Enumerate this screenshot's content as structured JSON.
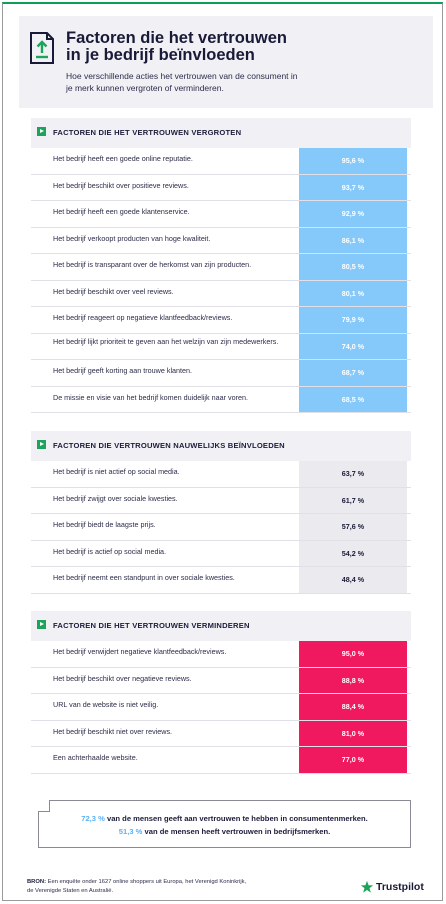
{
  "header": {
    "title_lines": [
      "Factoren die het vertrouwen",
      "in je bedrijf beïnvloeden"
    ],
    "subtitle_lines": [
      "Hoe verschillende acties het vertrouwen van de consument in",
      "je merk kunnen vergroten of verminderen."
    ]
  },
  "sections": {
    "increase": {
      "label": "FACTOREN DIE HET VERTROUWEN VERGROTEN",
      "color": "#85c8fa",
      "rows": [
        {
          "text": "Het bedrijf heeft een goede online reputatie.",
          "value": "95,6 %"
        },
        {
          "text": "Het bedrijf beschikt over positieve reviews.",
          "value": "93,7 %"
        },
        {
          "text": "Het bedrijf heeft een goede klantenservice.",
          "value": "92,9 %"
        },
        {
          "text": "Het bedrijf verkoopt producten van hoge kwaliteit.",
          "value": "86,1 %"
        },
        {
          "text": "Het bedrijf is transparant over de herkomst van zijn producten.",
          "value": "80,5 %"
        },
        {
          "text": "Het bedrijf beschikt over veel reviews.",
          "value": "80,1 %"
        },
        {
          "text": "Het bedrijf reageert op negatieve klantfeedback/reviews.",
          "value": "79,9 %"
        },
        {
          "text": "Het bedrijf lijkt prioriteit te geven aan het welzijn van zijn medewerkers.",
          "value": "74,0 %"
        },
        {
          "text": "Het bedrijf geeft korting aan trouwe klanten.",
          "value": "68,7 %"
        },
        {
          "text": "De missie en visie van het bedrijf komen duidelijk naar voren.",
          "value": "68,5 %"
        }
      ]
    },
    "neutral": {
      "label": "FACTOREN DIE VERTROUWEN NAUWELIJKS BEÏNVLOEDEN",
      "color": "#ebebef",
      "rows": [
        {
          "text": "Het bedrijf is niet actief op social media.",
          "value": "63,7 %"
        },
        {
          "text": "Het bedrijf zwijgt over sociale kwesties.",
          "value": "61,7 %"
        },
        {
          "text": "Het bedrijf biedt de laagste prijs.",
          "value": "57,6 %"
        },
        {
          "text": "Het bedrijf is actief op social media.",
          "value": "54,2 %"
        },
        {
          "text": "Het bedrijf neemt een standpunt in over sociale kwesties.",
          "value": "48,4 %"
        }
      ]
    },
    "decrease": {
      "label": "FACTOREN DIE HET VERTROUWEN VERMINDEREN",
      "color": "#f0185f",
      "rows": [
        {
          "text": "Het bedrijf verwijdert negatieve klantfeedback/reviews.",
          "value": "95,0 %"
        },
        {
          "text": "Het bedrijf beschikt over negatieve reviews.",
          "value": "88,8 %"
        },
        {
          "text": "URL van de website is niet veilig.",
          "value": "88,4 %"
        },
        {
          "text": "Het bedrijf beschikt niet over reviews.",
          "value": "81,0 %"
        },
        {
          "text": "Een achterhaalde website.",
          "value": "77,0 %"
        }
      ]
    }
  },
  "summary": {
    "line1_pct": "72,3 %",
    "line1_text": " van de mensen geeft aan vertrouwen te hebben in consumentenmerken.",
    "line2_pct": "51,3 %",
    "line2_text": " van de mensen heeft vertrouwen in bedrijfsmerken."
  },
  "footer": {
    "source_label": "BRON:",
    "source_line1": " Een enquête onder 1627 online shoppers uit Europa, het Verenigd Koninkrijk,",
    "source_line2": "de Verenigde Staten en Australië.",
    "brand_name": "Trustpilot",
    "brand_icon": "star-icon"
  }
}
